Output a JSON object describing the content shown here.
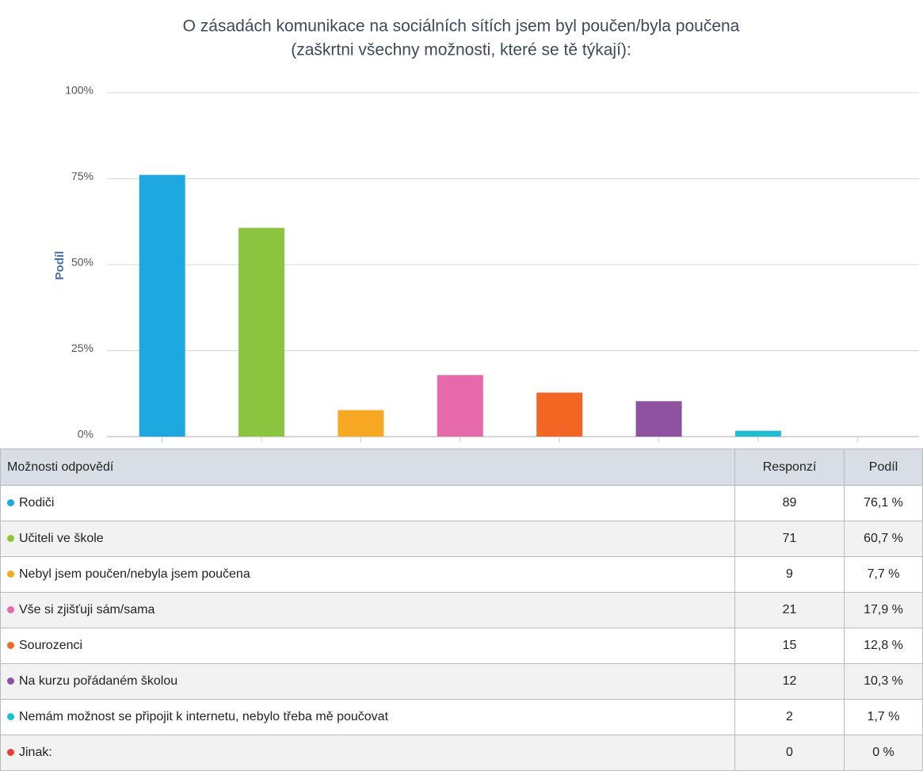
{
  "chart_data": {
    "type": "bar",
    "title": "O zásadách komunikace na sociálních sítích jsem byl poučen/byla poučena",
    "subtitle": "(zaškrtni všechny možnosti, které se tě týkají):",
    "y_label": "Podíl",
    "categories": [
      null,
      null,
      null,
      null,
      null,
      null,
      null,
      null
    ],
    "values": [
      76.1,
      60.7,
      7.7,
      17.9,
      12.8,
      10.3,
      1.7,
      0
    ],
    "colors": [
      "#1fa8e0",
      "#8bc53f",
      "#f7a823",
      "#e66aab",
      "#f26522",
      "#8e52a1",
      "#1fbcd2",
      "#e8403a"
    ],
    "ylim": [
      0,
      100
    ],
    "yticks": [
      {
        "value": 0,
        "label": "0%"
      },
      {
        "value": 25,
        "label": "25%"
      },
      {
        "value": 50,
        "label": "50%"
      },
      {
        "value": 75,
        "label": "75%"
      },
      {
        "value": 100,
        "label": "100%"
      }
    ],
    "grid": true
  },
  "table": {
    "headers": [
      "Možnosti odpovědí",
      "Responzí",
      "Podíl"
    ],
    "rows": [
      [
        "Rodiči",
        "89",
        "76,1 %"
      ],
      [
        "Učiteli ve škole",
        "71",
        "60,7 %"
      ],
      [
        "Nebyl jsem poučen/nebyla jsem poučena",
        "9",
        "7,7 %"
      ],
      [
        "Vše si zjišťuji sám/sama",
        "21",
        "17,9 %"
      ],
      [
        "Sourozenci",
        "15",
        "12,8 %"
      ],
      [
        "Na kurzu pořádaném školou",
        "12",
        "10,3 %"
      ],
      [
        "Nemám možnost se připojit k internetu, nebylo třeba mě poučovat",
        "2",
        "1,7 %"
      ],
      [
        "Jinak:",
        "0",
        "0 %"
      ]
    ]
  }
}
